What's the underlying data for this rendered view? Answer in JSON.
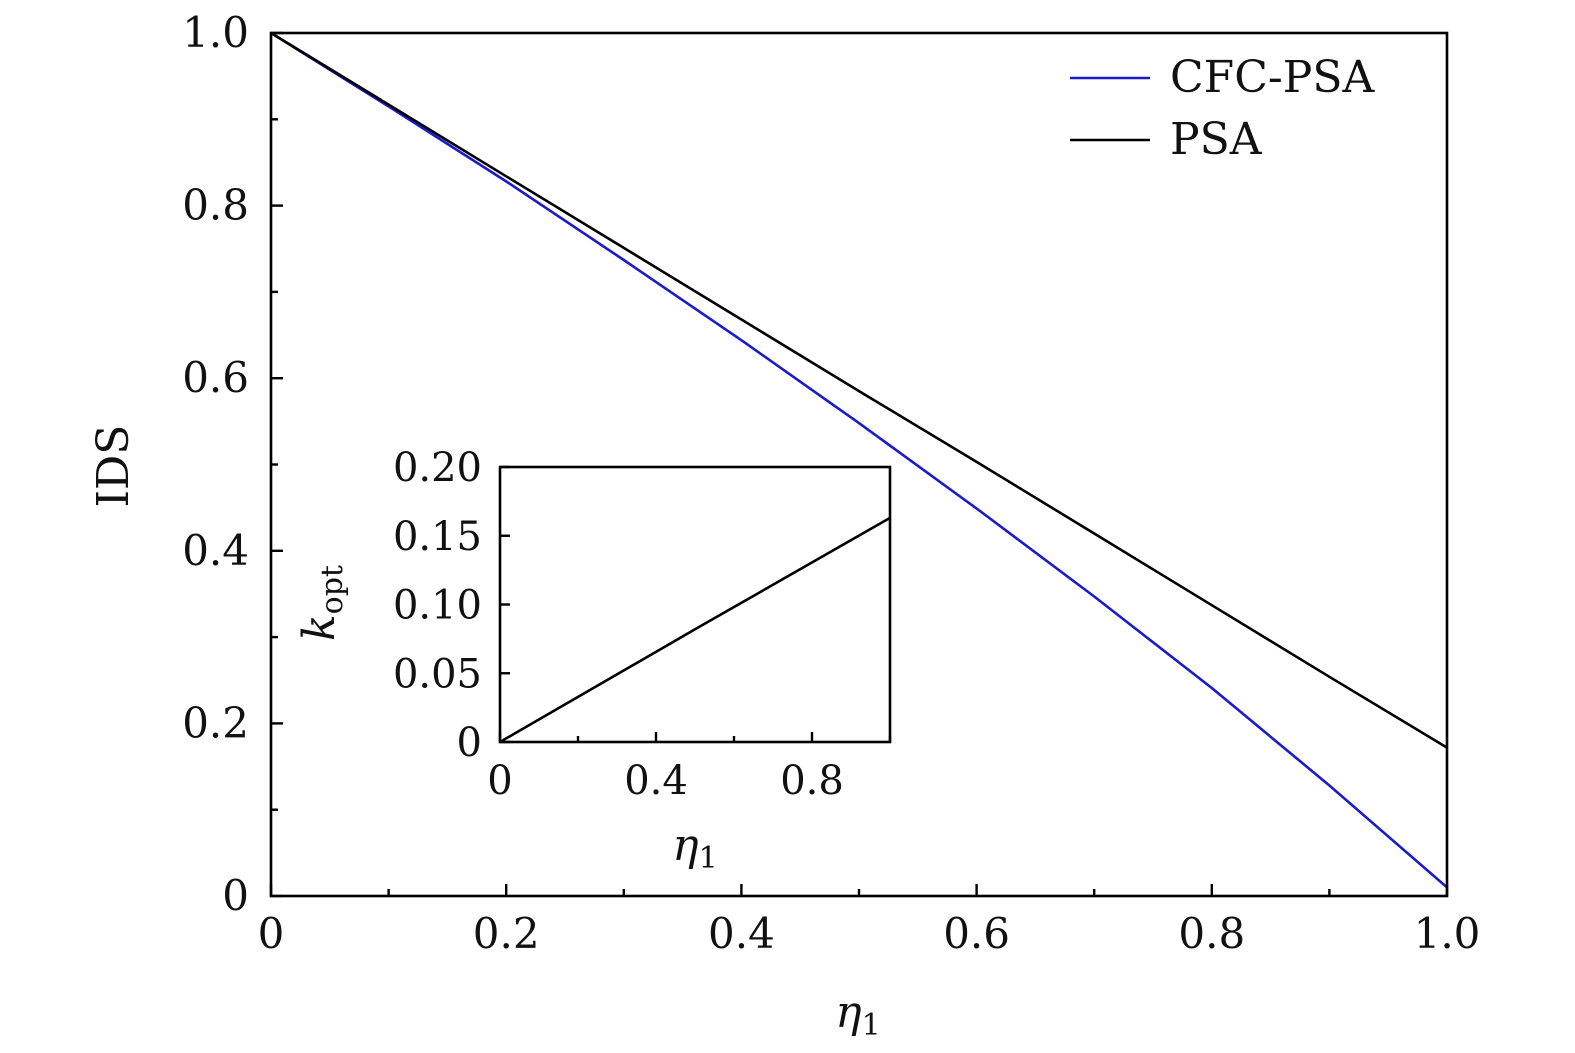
{
  "chart_data": [
    {
      "type": "line",
      "title": "",
      "xlabel": "η",
      "xlabel_sub": "1",
      "ylabel": "IDS",
      "xlim": [
        0,
        1.0
      ],
      "ylim": [
        0,
        1.0
      ],
      "x_ticks": [
        0,
        0.2,
        0.4,
        0.6,
        0.8,
        1.0
      ],
      "x_tick_labels": [
        "0",
        "0.2",
        "0.4",
        "0.6",
        "0.8",
        "1.0"
      ],
      "x_minor_ticks": [
        0.1,
        0.3,
        0.5,
        0.7,
        0.9
      ],
      "y_ticks": [
        0,
        0.2,
        0.4,
        0.6,
        0.8,
        1.0
      ],
      "y_tick_labels": [
        "0",
        "0.2",
        "0.4",
        "0.6",
        "0.8",
        "1.0"
      ],
      "y_minor_ticks": [
        0.1,
        0.3,
        0.5,
        0.7,
        0.9
      ],
      "grid": false,
      "legend_position": "top-right",
      "series": [
        {
          "name": "CFC-PSA",
          "color": "#1a1acc",
          "x": [
            0,
            0.1,
            0.2,
            0.3,
            0.4,
            0.5,
            0.6,
            0.7,
            0.8,
            0.9,
            1.0
          ],
          "y": [
            1.0,
            0.915,
            0.828,
            0.737,
            0.644,
            0.548,
            0.449,
            0.347,
            0.241,
            0.128,
            0.01
          ]
        },
        {
          "name": "PSA",
          "color": "#000000",
          "x": [
            0,
            0.1,
            0.2,
            0.3,
            0.4,
            0.5,
            0.6,
            0.7,
            0.8,
            0.9,
            1.0
          ],
          "y": [
            1.0,
            0.917,
            0.834,
            0.751,
            0.668,
            0.585,
            0.503,
            0.42,
            0.337,
            0.254,
            0.172
          ]
        }
      ]
    },
    {
      "type": "line",
      "title": "",
      "xlabel": "η",
      "xlabel_sub": "1",
      "ylabel": "k",
      "ylabel_sub": "opt",
      "xlim": [
        0,
        1.0
      ],
      "ylim": [
        0,
        0.2
      ],
      "x_ticks": [
        0,
        0.4,
        0.8
      ],
      "x_tick_labels": [
        "0",
        "0.4",
        "0.8"
      ],
      "x_minor_ticks": [
        0.2,
        0.6,
        1.0
      ],
      "y_ticks": [
        0,
        0.05,
        0.1,
        0.15,
        0.2
      ],
      "y_tick_labels": [
        "0",
        "0.05",
        "0.10",
        "0.15",
        "0.20"
      ],
      "grid": false,
      "series": [
        {
          "name": "k_opt",
          "color": "#000000",
          "x": [
            0,
            0.5,
            1.0
          ],
          "y": [
            0,
            0.082,
            0.163
          ]
        }
      ]
    }
  ]
}
